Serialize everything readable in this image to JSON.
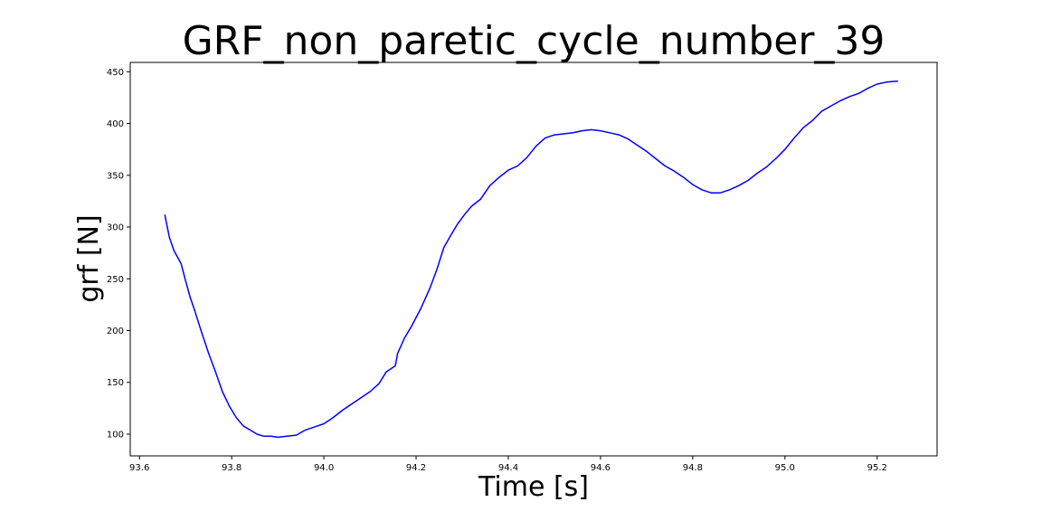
{
  "chart_data": {
    "type": "line",
    "title": "GRF_non_paretic_cycle_number_39",
    "xlabel": "Time [s]",
    "ylabel": "grf [N]",
    "xlim": [
      93.58,
      95.33
    ],
    "ylim": [
      79,
      459
    ],
    "xticks": [
      93.6,
      93.8,
      94.0,
      94.2,
      94.4,
      94.6,
      94.8,
      95.0,
      95.2
    ],
    "xtick_labels": [
      "93.6",
      "93.8",
      "94.0",
      "94.2",
      "94.4",
      "94.6",
      "94.8",
      "95.0",
      "95.2"
    ],
    "yticks": [
      100,
      150,
      200,
      250,
      300,
      350,
      400,
      450
    ],
    "ytick_labels": [
      "100",
      "150",
      "200",
      "250",
      "300",
      "350",
      "400",
      "450"
    ],
    "grid": false,
    "series": [
      {
        "color": "#0000ff",
        "x": [
          93.655,
          93.665,
          93.675,
          93.69,
          93.7,
          93.71,
          93.72,
          93.735,
          93.75,
          93.765,
          93.78,
          93.795,
          93.81,
          93.825,
          93.84,
          93.855,
          93.87,
          93.885,
          93.9,
          93.92,
          93.94,
          93.96,
          93.98,
          94.0,
          94.02,
          94.04,
          94.06,
          94.08,
          94.1,
          94.12,
          94.135,
          94.155,
          94.16,
          94.175,
          94.19,
          94.21,
          94.23,
          94.245,
          94.26,
          94.275,
          94.29,
          94.305,
          94.32,
          94.34,
          94.36,
          94.38,
          94.4,
          94.42,
          94.44,
          94.46,
          94.48,
          94.5,
          94.52,
          94.54,
          94.56,
          94.58,
          94.6,
          94.62,
          94.64,
          94.66,
          94.68,
          94.7,
          94.72,
          94.74,
          94.76,
          94.78,
          94.8,
          94.82,
          94.84,
          94.86,
          94.88,
          94.9,
          94.92,
          94.94,
          94.96,
          94.98,
          95.0,
          95.02,
          95.04,
          95.06,
          95.08,
          95.1,
          95.12,
          95.14,
          95.16,
          95.18,
          95.2,
          95.22,
          95.245
        ],
        "y": [
          312,
          290,
          277,
          265,
          248,
          232,
          219,
          198,
          178,
          160,
          141,
          127,
          116,
          108,
          104,
          100,
          98,
          98,
          97,
          98,
          99,
          104,
          107,
          110,
          116,
          123,
          129,
          135,
          141,
          149,
          160,
          166,
          178,
          193,
          204,
          221,
          241,
          259,
          280,
          292,
          303,
          312,
          320,
          327,
          340,
          348,
          355,
          359,
          367,
          378,
          386,
          389,
          390,
          391,
          393,
          394,
          393,
          391,
          389,
          385,
          379,
          373,
          366,
          359,
          354,
          348,
          341,
          336,
          333,
          333,
          336,
          340,
          345,
          352,
          358,
          366,
          375,
          386,
          396,
          403,
          412,
          417,
          422,
          426,
          429,
          434,
          438,
          440,
          441
        ]
      }
    ]
  }
}
